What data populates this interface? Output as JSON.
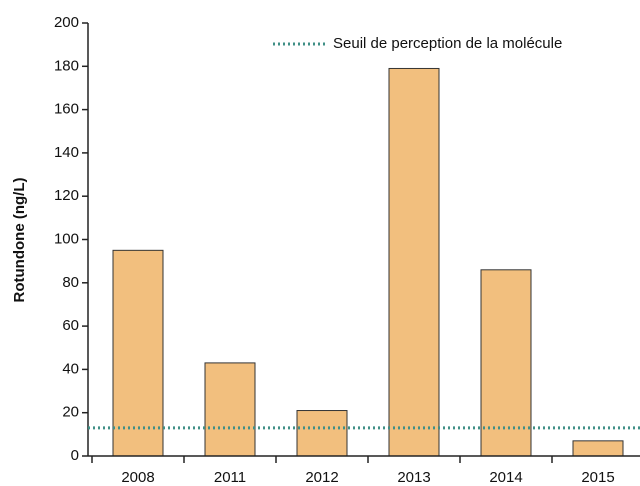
{
  "chart_data": {
    "type": "bar",
    "y_label": "Rotundone (ng/L)",
    "categories": [
      "2008",
      "2011",
      "2012",
      "2013",
      "2014",
      "2015"
    ],
    "values": [
      95,
      43,
      21,
      179,
      86,
      7
    ],
    "color": "#f2bf7e",
    "threshold": {
      "name": "Seuil de perception de la molécule",
      "value": 13,
      "color": "#3f8f86"
    },
    "ylim": [
      0,
      200
    ],
    "yticks": [
      0,
      20,
      40,
      60,
      80,
      100,
      120,
      140,
      160,
      180,
      200
    ]
  }
}
